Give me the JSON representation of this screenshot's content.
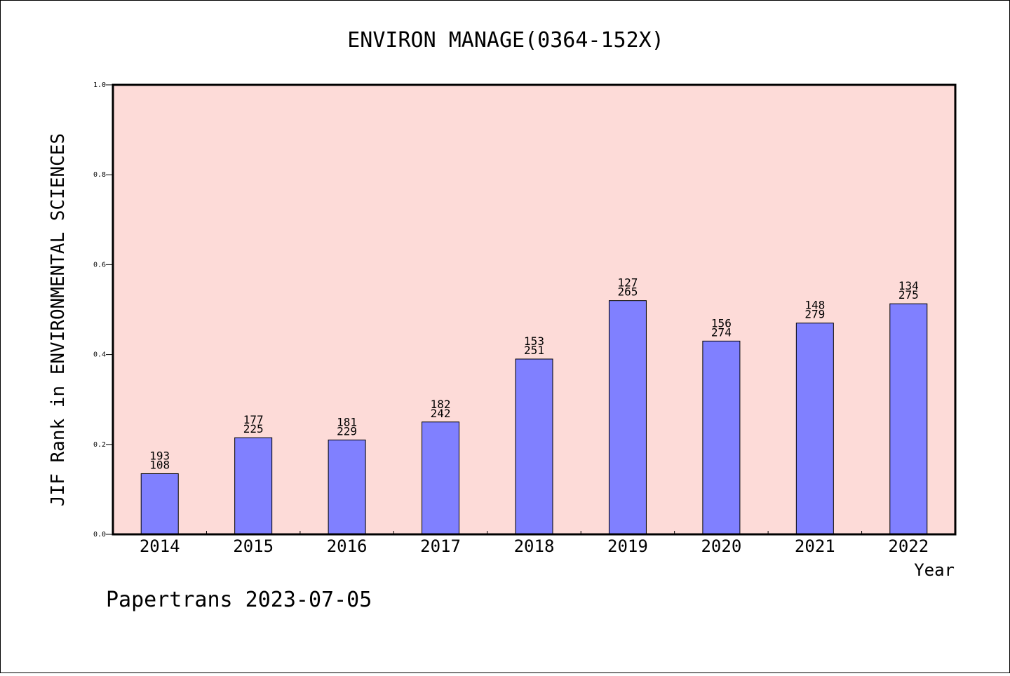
{
  "chart_data": {
    "type": "bar",
    "title": "ENVIRON MANAGE(0364-152X)",
    "ylabel": "JIF Rank in ENVIRONMENTAL SCIENCES",
    "xlabel": "Year",
    "ylim": [
      0,
      1.0
    ],
    "yticks": [
      "0.0",
      "0.2",
      "0.4",
      "0.6",
      "0.8",
      "1.0"
    ],
    "categories": [
      "2014",
      "2015",
      "2016",
      "2017",
      "2018",
      "2019",
      "2020",
      "2021",
      "2022"
    ],
    "values": [
      0.135,
      0.215,
      0.21,
      0.25,
      0.39,
      0.52,
      0.43,
      0.47,
      0.513
    ],
    "labels_top": [
      "193",
      "177",
      "181",
      "182",
      "153",
      "127",
      "156",
      "148",
      "134"
    ],
    "labels_bottom": [
      "108",
      "225",
      "229",
      "242",
      "251",
      "265",
      "274",
      "279",
      "275"
    ],
    "grid": false,
    "colors": {
      "plot_background": "#fddbd8",
      "bar_fill": "#8080ff",
      "bar_stroke": "#000000"
    }
  },
  "footer": "Papertrans 2023-07-05"
}
